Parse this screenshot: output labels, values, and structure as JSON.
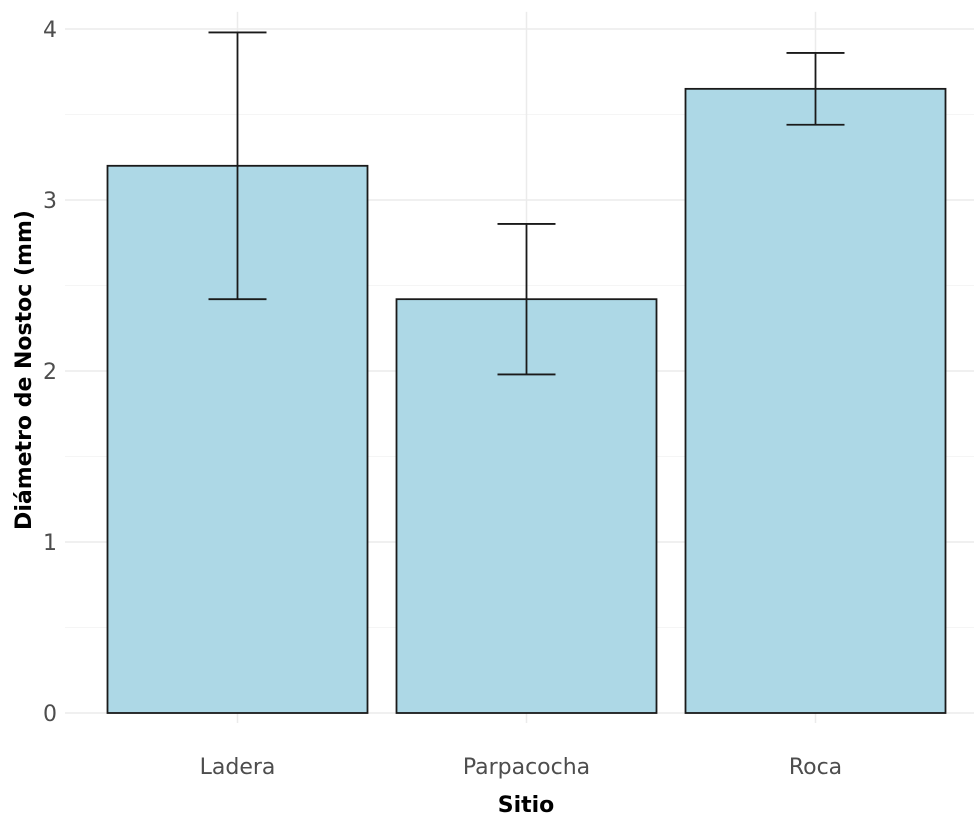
{
  "chart_data": {
    "type": "bar",
    "categories": [
      "Ladera",
      "Parpacocha",
      "Roca"
    ],
    "values": [
      3.2,
      2.42,
      3.65
    ],
    "error_bars": [
      {
        "lower": 2.42,
        "upper": 3.98
      },
      {
        "lower": 1.98,
        "upper": 2.86
      },
      {
        "lower": 3.44,
        "upper": 3.86
      }
    ],
    "xlabel": "Sitio",
    "ylabel": "Diámetro de Nostoc (mm)",
    "ylim": [
      0,
      4.1
    ],
    "y_ticks": [
      0,
      1,
      2,
      3,
      4
    ],
    "grid": true,
    "colors": {
      "bar_fill": "#add8e6",
      "bar_stroke": "#1a1a1a",
      "grid_major": "#ebebeb",
      "grid_minor": "#f5f5f5",
      "errorbar": "#1a1a1a"
    }
  }
}
